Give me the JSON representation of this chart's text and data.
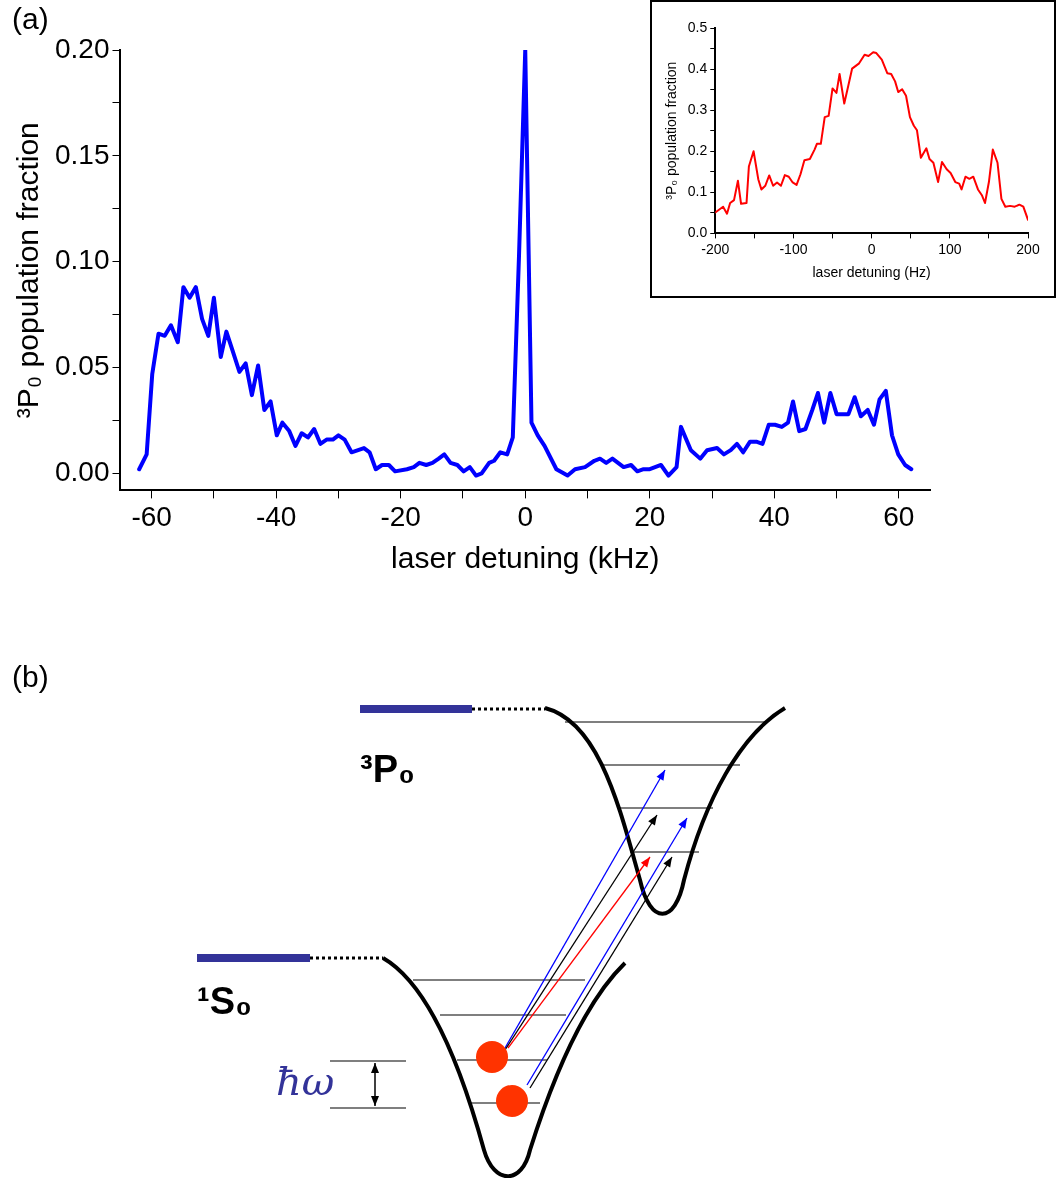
{
  "chart_data": [
    {
      "type": "line",
      "xlabel": "laser detuning (kHz)",
      "ylabel": "³P₀ population fraction",
      "annotations": [
        "(a)"
      ],
      "xlim": [
        -65,
        65
      ],
      "xticks": [
        -60,
        {
          "value": -50,
          "label": null
        },
        -40,
        {
          "value": -30,
          "label": null
        },
        -20,
        {
          "value": -10,
          "label": null
        },
        0,
        {
          "value": 10,
          "label": null
        },
        20,
        {
          "value": 30,
          "label": null
        },
        40,
        {
          "value": 50,
          "label": null
        },
        60
      ],
      "ylim": [
        -0.008,
        0.2
      ],
      "yticks": [
        {
          "value": 0,
          "label": "0.00"
        },
        {
          "value": 0.025,
          "label": null
        },
        0.05,
        {
          "value": 0.075,
          "label": null
        },
        {
          "value": 0.1,
          "label": "0.10"
        },
        {
          "value": 0.125,
          "label": null
        },
        0.15,
        {
          "value": 0.175,
          "label": null
        },
        {
          "value": 0.2,
          "label": "0.20"
        }
      ],
      "x": [
        -62,
        -60.8,
        -59.9,
        -58.9,
        -57.9,
        -56.9,
        -55.8,
        -54.9,
        -53.9,
        -52.9,
        -51.9,
        -50.9,
        -50,
        -48.9,
        -48,
        -47,
        -45.9,
        -44.9,
        -43.9,
        -42.9,
        -41.9,
        -40.9,
        -39.9,
        -39,
        -37.9,
        -36.9,
        -35.9,
        -34.9,
        -33.9,
        -32.9,
        -31.9,
        -30.9,
        -30,
        -29,
        -27.9,
        -25.9,
        -25,
        -24,
        -23,
        -21.9,
        -20.9,
        -19,
        -17.9,
        -17,
        -15.9,
        -14.9,
        -13.9,
        -13,
        -12,
        -10.9,
        -9.9,
        -8.9,
        -7.9,
        -7,
        -5.8,
        -5,
        -4,
        -2.9,
        -2,
        -1,
        0,
        1,
        2,
        3.1,
        5,
        6.8,
        8,
        9.6,
        11.1,
        12,
        13,
        14,
        15.8,
        17,
        18,
        19,
        20,
        21.8,
        23,
        24.3,
        25,
        26.6,
        28.1,
        29.2,
        30.8,
        31.9,
        33,
        34,
        35,
        36.1,
        37.1,
        38.1,
        39.1,
        40.1,
        41.2,
        42.2,
        43,
        44,
        45,
        46.1,
        47,
        48,
        49,
        50,
        51.9,
        52.9,
        53.9,
        55,
        56,
        56.9,
        57.9,
        58.9,
        59.9,
        61,
        62
      ],
      "series": [
        {
          "color": "#0000ff",
          "values": [
            0.002,
            0.009,
            0.047,
            0.066,
            0.065,
            0.07,
            0.062,
            0.088,
            0.083,
            0.088,
            0.073,
            0.065,
            0.083,
            0.055,
            0.067,
            0.058,
            0.048,
            0.052,
            0.037,
            0.051,
            0.03,
            0.034,
            0.018,
            0.024,
            0.02,
            0.013,
            0.019,
            0.017,
            0.021,
            0.014,
            0.016,
            0.016,
            0.018,
            0.016,
            0.01,
            0.012,
            0.01,
            0.002,
            0.004,
            0.004,
            0.001,
            0.002,
            0.003,
            0.005,
            0.004,
            0.005,
            0.007,
            0.009,
            0.005,
            0.004,
            0.001,
            0.003,
            -0.001,
            0,
            0.005,
            0.006,
            0.01,
            0.009,
            0.017,
            0.103,
            0.2,
            0.024,
            0.018,
            0.013,
            0.002,
            -0.001,
            0.002,
            0.003,
            0.006,
            0.007,
            0.005,
            0.007,
            0.003,
            0.004,
            0.001,
            0.002,
            0.002,
            0.004,
            -0.001,
            0.003,
            0.022,
            0.011,
            0.007,
            0.011,
            0.012,
            0.009,
            0.011,
            0.014,
            0.01,
            0.015,
            0.015,
            0.014,
            0.023,
            0.023,
            0.022,
            0.024,
            0.034,
            0.02,
            0.021,
            0.03,
            0.038,
            0.024,
            0.038,
            0.028,
            0.028,
            0.036,
            0.027,
            0.03,
            0.023,
            0.035,
            0.039,
            0.018,
            0.009,
            0.004,
            0.002
          ]
        }
      ]
    },
    {
      "type": "line",
      "xlabel": "laser detuning (Hz)",
      "ylabel": "³P₀ population fraction",
      "xlim": [
        -200,
        200
      ],
      "xticks": [
        -200,
        {
          "value": -150,
          "label": null
        },
        -100,
        {
          "value": -50,
          "label": null
        },
        0,
        {
          "value": 50,
          "label": null
        },
        100,
        {
          "value": 150,
          "label": null
        },
        200
      ],
      "ylim": [
        0,
        0.5
      ],
      "yticks": [
        {
          "value": 0,
          "label": "0.0"
        },
        {
          "value": 0.05,
          "label": null
        },
        0.1,
        {
          "value": 0.15,
          "label": null
        },
        0.2,
        {
          "value": 0.25,
          "label": null
        },
        0.3,
        {
          "value": 0.35,
          "label": null
        },
        0.4,
        {
          "value": 0.45,
          "label": null
        },
        0.5
      ],
      "x": [
        -200,
        -190,
        -185,
        -181,
        -176,
        -171,
        -167,
        -160,
        -157,
        -151,
        -145,
        -141,
        -136,
        -131,
        -126,
        -121,
        -116,
        -111,
        -106,
        -101,
        -96,
        -91,
        -86,
        -79,
        -73,
        -70,
        -65,
        -60,
        -55,
        -50,
        -45,
        -41,
        -35,
        -30,
        -25,
        -16,
        -9,
        -4,
        2,
        6,
        13,
        20,
        25,
        30,
        34,
        39,
        44,
        49,
        54,
        58,
        63,
        70,
        74,
        79,
        85,
        90,
        96,
        101,
        107,
        112,
        115,
        120,
        125,
        130,
        136,
        141,
        145,
        150,
        155,
        161,
        166,
        171,
        177,
        183,
        189,
        194,
        200
      ],
      "series": [
        {
          "color": "#ff0000",
          "values": [
            0.051,
            0.065,
            0.048,
            0.074,
            0.081,
            0.128,
            0.072,
            0.074,
            0.163,
            0.2,
            0.132,
            0.107,
            0.116,
            0.141,
            0.116,
            0.124,
            0.116,
            0.142,
            0.138,
            0.124,
            0.118,
            0.144,
            0.178,
            0.181,
            0.204,
            0.218,
            0.218,
            0.283,
            0.286,
            0.353,
            0.342,
            0.388,
            0.316,
            0.358,
            0.401,
            0.414,
            0.435,
            0.432,
            0.441,
            0.439,
            0.423,
            0.39,
            0.388,
            0.37,
            0.344,
            0.351,
            0.335,
            0.283,
            0.262,
            0.251,
            0.184,
            0.207,
            0.181,
            0.172,
            0.125,
            0.174,
            0.156,
            0.147,
            0.125,
            0.121,
            0.107,
            0.138,
            0.133,
            0.138,
            0.107,
            0.093,
            0.074,
            0.125,
            0.204,
            0.172,
            0.084,
            0.065,
            0.067,
            0.065,
            0.07,
            0.065,
            0.033
          ]
        }
      ]
    },
    {
      "type": "other",
      "annotations": [
        "(b)",
        "³P₀",
        "¹S₀",
        "ħω"
      ]
    }
  ]
}
